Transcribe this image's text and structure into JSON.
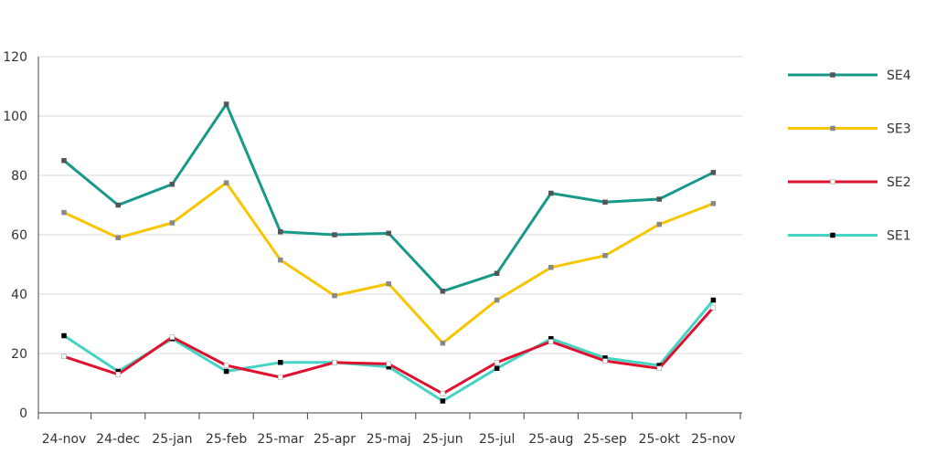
{
  "chart_data": {
    "type": "line",
    "title": "",
    "xlabel": "",
    "ylabel": "",
    "ylim": [
      0,
      120
    ],
    "y_ticks": [
      0,
      20,
      40,
      60,
      80,
      100,
      120
    ],
    "grid": "horizontal",
    "legend_position": "right",
    "categories": [
      "24-nov",
      "24-dec",
      "25-jan",
      "25-feb",
      "25-mar",
      "25-apr",
      "25-maj",
      "25-jun",
      "25-jul",
      "25-aug",
      "25-sep",
      "25-okt",
      "25-nov"
    ],
    "series": [
      {
        "name": "SE4",
        "color": "#17998a",
        "marker_color": "#555555",
        "values": [
          85,
          70,
          77,
          104,
          61,
          60,
          60.5,
          41,
          47,
          74,
          71,
          72,
          81
        ]
      },
      {
        "name": "SE3",
        "color": "#f7c600",
        "marker_color": "#888888",
        "values": [
          67.5,
          59,
          64,
          77.5,
          51.5,
          39.5,
          43.5,
          23.5,
          38,
          49,
          53,
          63.5,
          70.5
        ]
      },
      {
        "name": "SE2",
        "color": "#e0102f",
        "marker_color": "#ffffff",
        "values": [
          19,
          13,
          25.5,
          16,
          12,
          17,
          16.5,
          6.5,
          17,
          24,
          17.5,
          15,
          35.5
        ]
      },
      {
        "name": "SE1",
        "color": "#45d4c4",
        "marker_color": "#000000",
        "values": [
          26,
          14,
          25,
          14,
          17,
          17,
          15.5,
          4,
          15,
          25,
          18.5,
          16,
          38
        ]
      }
    ]
  }
}
